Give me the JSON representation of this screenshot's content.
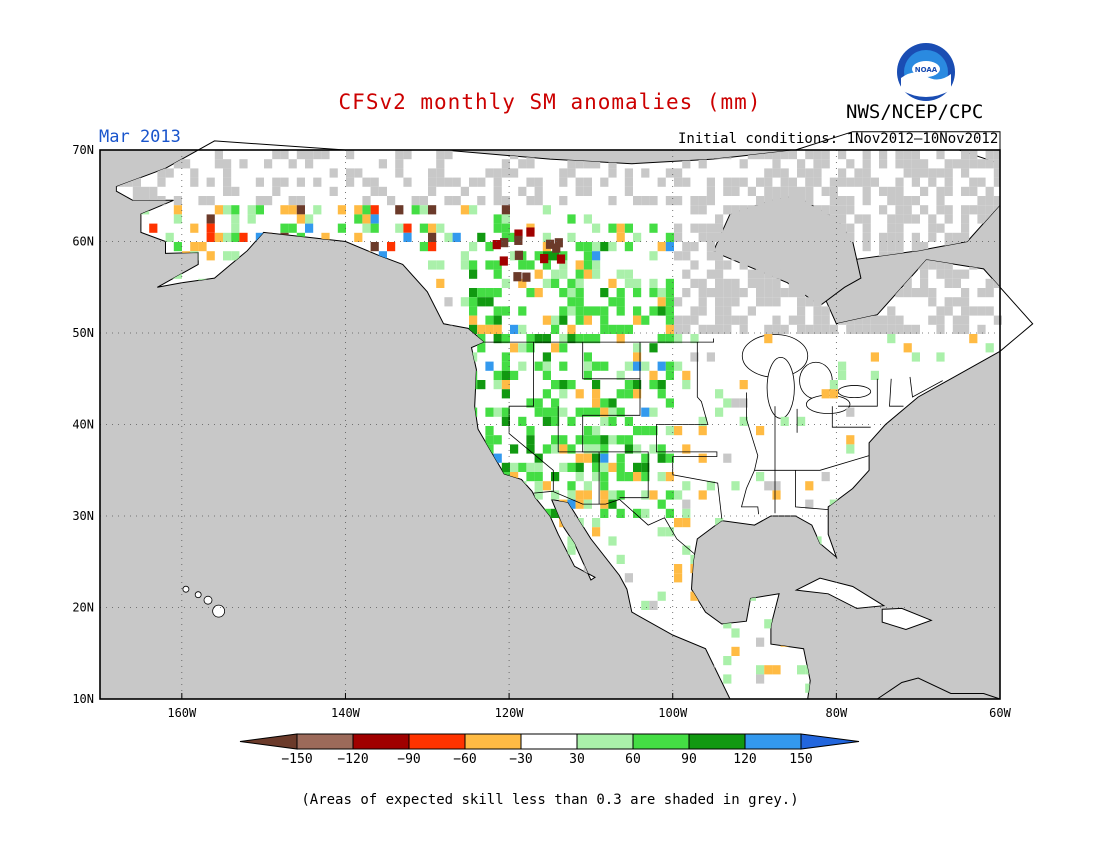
{
  "header": {
    "title": "CFSv2 monthly SM anomalies (mm)",
    "title_color": "#cc0000",
    "organization": "NWS/NCEP/CPC",
    "month": "Mar 2013",
    "month_color": "#1a55cc",
    "initial_conditions": "Initial conditions: 1Nov2012—10Nov2012",
    "logo_name": "noaa-logo"
  },
  "map": {
    "lat_labels": [
      "70N",
      "60N",
      "50N",
      "40N",
      "30N",
      "20N",
      "10N"
    ],
    "lon_labels": [
      "160W",
      "140W",
      "120W",
      "100W",
      "80W",
      "60W"
    ],
    "lat_range": [
      10,
      70
    ],
    "lon_range": [
      -170,
      -60
    ],
    "grid": "dotted",
    "land_color": "#ffffff",
    "ocean_color": "#c8c8c8",
    "skill_mask_color": "#c8c8c8"
  },
  "legend": {
    "colors": [
      "#6b3a2a",
      "#9c6a5a",
      "#a00000",
      "#ff3300",
      "#ffbb44",
      "#ffffff",
      "#aaf0aa",
      "#44dd44",
      "#119911",
      "#3399ee",
      "#2266dd"
    ],
    "tick_labels": [
      "−150",
      "−120",
      "−90",
      "−60",
      "−30",
      "30",
      "60",
      "90",
      "120",
      "150"
    ]
  },
  "footnote": "(Areas of expected skill less than 0.3 are shaded in grey.)"
}
